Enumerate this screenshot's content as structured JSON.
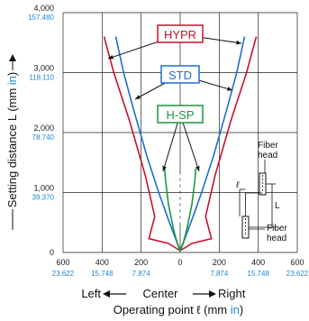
{
  "chart_data": {
    "type": "line",
    "xlabel": "Operating point ℓ (mm in)",
    "xlabel_main": "Operating point ℓ (mm ",
    "xlabel_unit": "in",
    "xlabel_close": ")",
    "ylabel": "Setting distance L (mm in)",
    "ylabel_main": "Setting distance L (mm ",
    "ylabel_unit": "in",
    "ylabel_close": ")",
    "direction": {
      "left": "Left",
      "center": "Center",
      "right": "Right"
    },
    "xlim": [
      -600,
      600
    ],
    "ylim": [
      0,
      4000
    ],
    "x_ticks_mm": [
      {
        "value": -600,
        "mm": "600",
        "in": "23.622"
      },
      {
        "value": -400,
        "mm": "400",
        "in": "15.748"
      },
      {
        "value": -200,
        "mm": "200",
        "in": "7.874"
      },
      {
        "value": 0,
        "mm": "0",
        "in": ""
      },
      {
        "value": 200,
        "mm": "200",
        "in": "7.874"
      },
      {
        "value": 400,
        "mm": "400",
        "in": "15.748"
      },
      {
        "value": 600,
        "mm": "600",
        "in": "23.622"
      }
    ],
    "y_ticks": [
      {
        "value": 0,
        "mm": "0",
        "in": ""
      },
      {
        "value": 1000,
        "mm": "1,000",
        "in": "39.370"
      },
      {
        "value": 2000,
        "mm": "2,000",
        "in": "78.740"
      },
      {
        "value": 3000,
        "mm": "3,000",
        "in": "118.110"
      },
      {
        "value": 4000,
        "mm": "4,000",
        "in": "157.480"
      }
    ],
    "series": [
      {
        "name": "HYPR",
        "color": "#c8102e",
        "right": [
          [
            0,
            30
          ],
          [
            60,
            150
          ],
          [
            160,
            230
          ],
          [
            130,
            600
          ],
          [
            180,
            1300
          ],
          [
            260,
            2200
          ],
          [
            340,
            3000
          ],
          [
            390,
            3600
          ]
        ]
      },
      {
        "name": "STD",
        "color": "#1e6fd0",
        "right": [
          [
            0,
            30
          ],
          [
            20,
            200
          ],
          [
            55,
            500
          ],
          [
            110,
            1000
          ],
          [
            170,
            1600
          ],
          [
            240,
            2400
          ],
          [
            290,
            3000
          ],
          [
            330,
            3600
          ]
        ]
      },
      {
        "name": "H-SP",
        "color": "#1a9641",
        "right": [
          [
            0,
            20
          ],
          [
            15,
            150
          ],
          [
            35,
            400
          ],
          [
            60,
            800
          ],
          [
            75,
            1200
          ],
          [
            80,
            1400
          ]
        ]
      }
    ],
    "annotations": {
      "fiber_head_top": "Fiber\nhead",
      "fiber_head_bottom": "Fiber\nhead",
      "ell": "ℓ",
      "L": "L"
    }
  }
}
